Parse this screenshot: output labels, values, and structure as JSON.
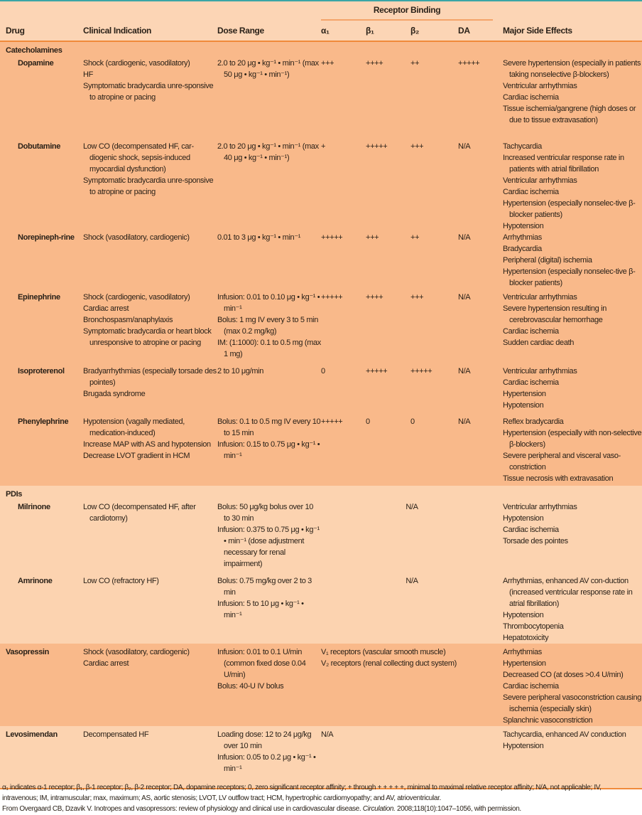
{
  "header": {
    "receptor_binding": "Receptor Binding",
    "columns": [
      "Drug",
      "Clinical Indication",
      "Dose Range",
      "α₁",
      "β₁",
      "β₂",
      "DA",
      "Major Side Effects"
    ]
  },
  "colors": {
    "header_bg": "#fcd5b5",
    "dark_band": "#f9b98a",
    "light_band": "#fcd3b0",
    "rule": "#f08a3a"
  },
  "groups": [
    {
      "title": "Catecholamines",
      "band": "dark",
      "drugs": [
        {
          "name": "Dopamine",
          "indication": [
            "Shock (cardiogenic, vasodilatory)",
            "  HF",
            "Symptomatic bradycardia unre-sponsive to atropine or pacing"
          ],
          "dose": [
            "2.0 to 20 μg • kg⁻¹ • min⁻¹ (max 50 μg • kg⁻¹ • min⁻¹)"
          ],
          "alpha1": "+++",
          "beta1": "++++",
          "beta2": "++",
          "da": "+++++",
          "effects": [
            "Severe hypertension (especially in patients taking nonselective β-blockers)",
            "Ventricular arrhythmias",
            "Cardiac ischemia",
            "Tissue ischemia/gangrene (high doses or due to tissue extravasation)"
          ]
        },
        {
          "name": "Dobutamine",
          "indication": [
            "Low CO (decompensated HF, car-diogenic shock, sepsis-induced myocardial dysfunction)",
            "Symptomatic bradycardia unre-sponsive to atropine or pacing"
          ],
          "dose": [
            "2.0 to 20 μg • kg⁻¹ • min⁻¹ (max 40 μg • kg⁻¹ • min⁻¹)"
          ],
          "alpha1": "+",
          "beta1": "+++++",
          "beta2": "+++",
          "da": "N/A",
          "effects": [
            "Tachycardia",
            "Increased ventricular response rate in patients with atrial fibrillation",
            "Ventricular arrhythmias",
            "Cardiac ischemia",
            "Hypertension (especially nonselec-tive β-blocker patients)",
            "Hypotension"
          ]
        },
        {
          "name": "Norepineph-rine",
          "indication": [
            "Shock (vasodilatory, cardiogenic)"
          ],
          "dose": [
            "0.01 to 3 μg • kg⁻¹ • min⁻¹"
          ],
          "alpha1": "+++++",
          "beta1": "+++",
          "beta2": "++",
          "da": "N/A",
          "effects": [
            "Arrhythmias",
            "Bradycardia",
            "Peripheral (digital) ischemia",
            "Hypertension (especially nonselec-tive β-blocker patients)"
          ]
        },
        {
          "name": "Epinephrine",
          "indication": [
            "Shock (cardiogenic, vasodilatory)",
            "Cardiac arrest",
            "Bronchospasm/anaphylaxis",
            "Symptomatic bradycardia or heart block unresponsive to atropine or pacing"
          ],
          "dose": [
            "Infusion: 0.01 to 0.10 μg • kg⁻¹ • min⁻¹",
            "Bolus: 1 mg IV every 3 to 5 min (max 0.2 mg/kg)",
            "IM: (1:1000): 0.1 to 0.5 mg (max 1 mg)"
          ],
          "alpha1": "+++++",
          "beta1": "++++",
          "beta2": "+++",
          "da": "N/A",
          "effects": [
            "Ventricular arrhythmias",
            "Severe hypertension resulting in cerebrovascular hemorrhage",
            "Cardiac ischemia",
            "Sudden cardiac death"
          ]
        },
        {
          "name": "Isoproterenol",
          "indication": [
            "Bradyarrhythmias (especially torsade des pointes)",
            "  Brugada syndrome"
          ],
          "dose": [
            "2 to 10 μg/min"
          ],
          "alpha1": "0",
          "beta1": "+++++",
          "beta2": "+++++",
          "da": "N/A",
          "effects": [
            "Ventricular arrhythmias",
            "Cardiac ischemia",
            "Hypertension",
            "Hypotension"
          ]
        },
        {
          "name": "Phenylephrine",
          "indication": [
            "Hypotension (vagally mediated, medication-induced)",
            "Increase MAP with AS and hypotension",
            "Decrease LVOT gradient in HCM"
          ],
          "dose": [
            "Bolus: 0.1 to 0.5 mg IV every 10 to 15 min",
            "Infusion: 0.15 to 0.75 μg • kg⁻¹ • min⁻¹"
          ],
          "alpha1": "+++++",
          "beta1": "0",
          "beta2": "0",
          "da": "N/A",
          "effects": [
            "Reflex bradycardia",
            "Hypertension (especially with non-selective β-blockers)",
            "Severe peripheral and visceral vaso-constriction",
            "Tissue necrosis with extravasation"
          ]
        }
      ]
    },
    {
      "title": "PDIs",
      "band": "light",
      "drugs": [
        {
          "name": "Milrinone",
          "indication": [
            "Low CO (decompensated HF, after cardiotomy)"
          ],
          "dose": [
            "Bolus: 50 μg/kg bolus over 10 to 30 min",
            "Infusion: 0.375 to 0.75 μg • kg⁻¹ • min⁻¹ (dose adjustment necessary for renal impairment)"
          ],
          "receptor_span": [
            "N/A"
          ],
          "effects": [
            "Ventricular arrhythmias",
            "Hypotension",
            "Cardiac ischemia",
            "Torsade des pointes"
          ]
        },
        {
          "name": "Amrinone",
          "indication": [
            "Low CO (refractory HF)"
          ],
          "dose": [
            "Bolus: 0.75 mg/kg over 2 to 3 min",
            "Infusion: 5 to 10 μg • kg⁻¹ • min⁻¹"
          ],
          "receptor_span": [
            "N/A"
          ],
          "effects": [
            "Arrhythmias, enhanced AV con-duction (increased ventricular response rate in atrial fibrillation)",
            "Hypotension",
            "Thrombocytopenia",
            "Hepatotoxicity"
          ]
        }
      ]
    },
    {
      "title": "",
      "band": "dark",
      "drugs": [
        {
          "name": "Vasopressin",
          "indication": [
            "Shock (vasodilatory, cardiogenic)",
            "Cardiac arrest"
          ],
          "dose": [
            "Infusion: 0.01 to 0.1 U/min (common fixed dose 0.04 U/min)",
            "Bolus: 40-U IV bolus"
          ],
          "receptor_span": [
            "V₁ receptors (vascular smooth muscle)",
            "V₂ receptors (renal collecting duct system)"
          ],
          "effects": [
            "Arrhythmias",
            "Hypertension",
            "Decreased CO (at doses >0.4 U/min)",
            "Cardiac ischemia",
            "Severe peripheral vasoconstriction causing ischemia (especially skin)",
            "Splanchnic vasoconstriction"
          ]
        }
      ]
    },
    {
      "title": "",
      "band": "light",
      "drugs": [
        {
          "name": "Levosimendan",
          "indication": [
            "Decompensated HF"
          ],
          "dose": [
            "Loading dose: 12 to 24 μg/kg over 10 min",
            "Infusion: 0.05 to 0.2 μg • kg⁻¹ • min⁻¹"
          ],
          "receptor_span": [
            "N/A"
          ],
          "effects": [
            "Tachycardia, enhanced AV conduction",
            "Hypotension"
          ]
        }
      ]
    }
  ],
  "footnote": {
    "abbrev": "α₁ indicates α-1 receptor; β₁, β-1 receptor; β₂, β-2 receptor; DA, dopamine receptors; 0, zero significant receptor affinity; + through + + + + +, minimal to maximal relative receptor affinity; N/A, not applicable; IV, intravenous; IM, intramuscular; max, maximum; AS, aortic stenosis; LVOT, LV outflow tract; HCM, hypertrophic cardiomyopathy; and AV, atrioventricular.",
    "source_pre": "From Overgaard CB, Dzavik V. Inotropes and vasopressors: review of physiology and clinical use in cardiovascular disease. ",
    "source_journal": "Circulation.",
    "source_post": " 2008;118(10):1047–1056, with permission."
  }
}
